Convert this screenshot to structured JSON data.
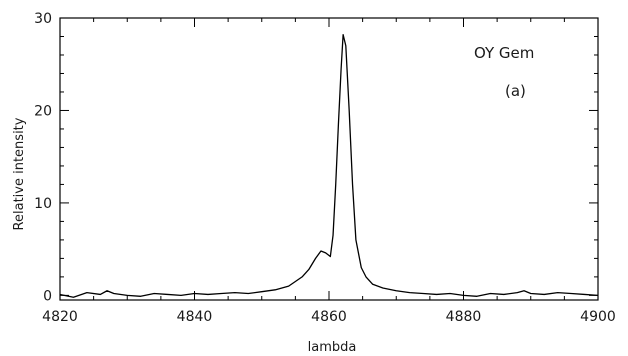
{
  "chart_data": {
    "type": "line",
    "title": "",
    "annotations": [
      "OY Gem",
      "(a)"
    ],
    "xlabel": "lambda",
    "ylabel": "Relative intensity",
    "xlim": [
      4820,
      4900
    ],
    "ylim": [
      -0.5,
      30
    ],
    "xticks": [
      4820,
      4840,
      4860,
      4880,
      4900
    ],
    "yticks": [
      0,
      10,
      20,
      30
    ],
    "grid": false,
    "series": [
      {
        "x": [
          4820,
          4822,
          4824,
          4826,
          4827,
          4828,
          4830,
          4832,
          4834,
          4836,
          4838,
          4840,
          4842,
          4844,
          4846,
          4848,
          4850,
          4852,
          4854,
          4855,
          4856,
          4857,
          4858,
          4858.8,
          4859.5,
          4860.2,
          4860.6,
          4861,
          4861.4,
          4861.8,
          4862.1,
          4862.5,
          4863,
          4863.5,
          4864,
          4864.8,
          4865.5,
          4866.5,
          4868,
          4870,
          4872,
          4874,
          4876,
          4878,
          4880,
          4882,
          4884,
          4886,
          4888,
          4889,
          4890,
          4892,
          4894,
          4896,
          4898,
          4900
        ],
        "y": [
          0.1,
          -0.2,
          0.3,
          0.1,
          0.5,
          0.2,
          0.0,
          -0.1,
          0.2,
          0.1,
          0.0,
          0.2,
          0.1,
          0.2,
          0.3,
          0.2,
          0.4,
          0.6,
          1.0,
          1.5,
          2.0,
          2.8,
          4.0,
          4.8,
          4.6,
          4.2,
          6.5,
          12.0,
          18.5,
          24.5,
          28.2,
          27.0,
          20.0,
          12.0,
          6.0,
          3.0,
          2.0,
          1.2,
          0.8,
          0.5,
          0.3,
          0.2,
          0.1,
          0.2,
          0.0,
          -0.1,
          0.2,
          0.1,
          0.3,
          0.5,
          0.2,
          0.1,
          0.3,
          0.2,
          0.1,
          0.0
        ]
      }
    ]
  }
}
